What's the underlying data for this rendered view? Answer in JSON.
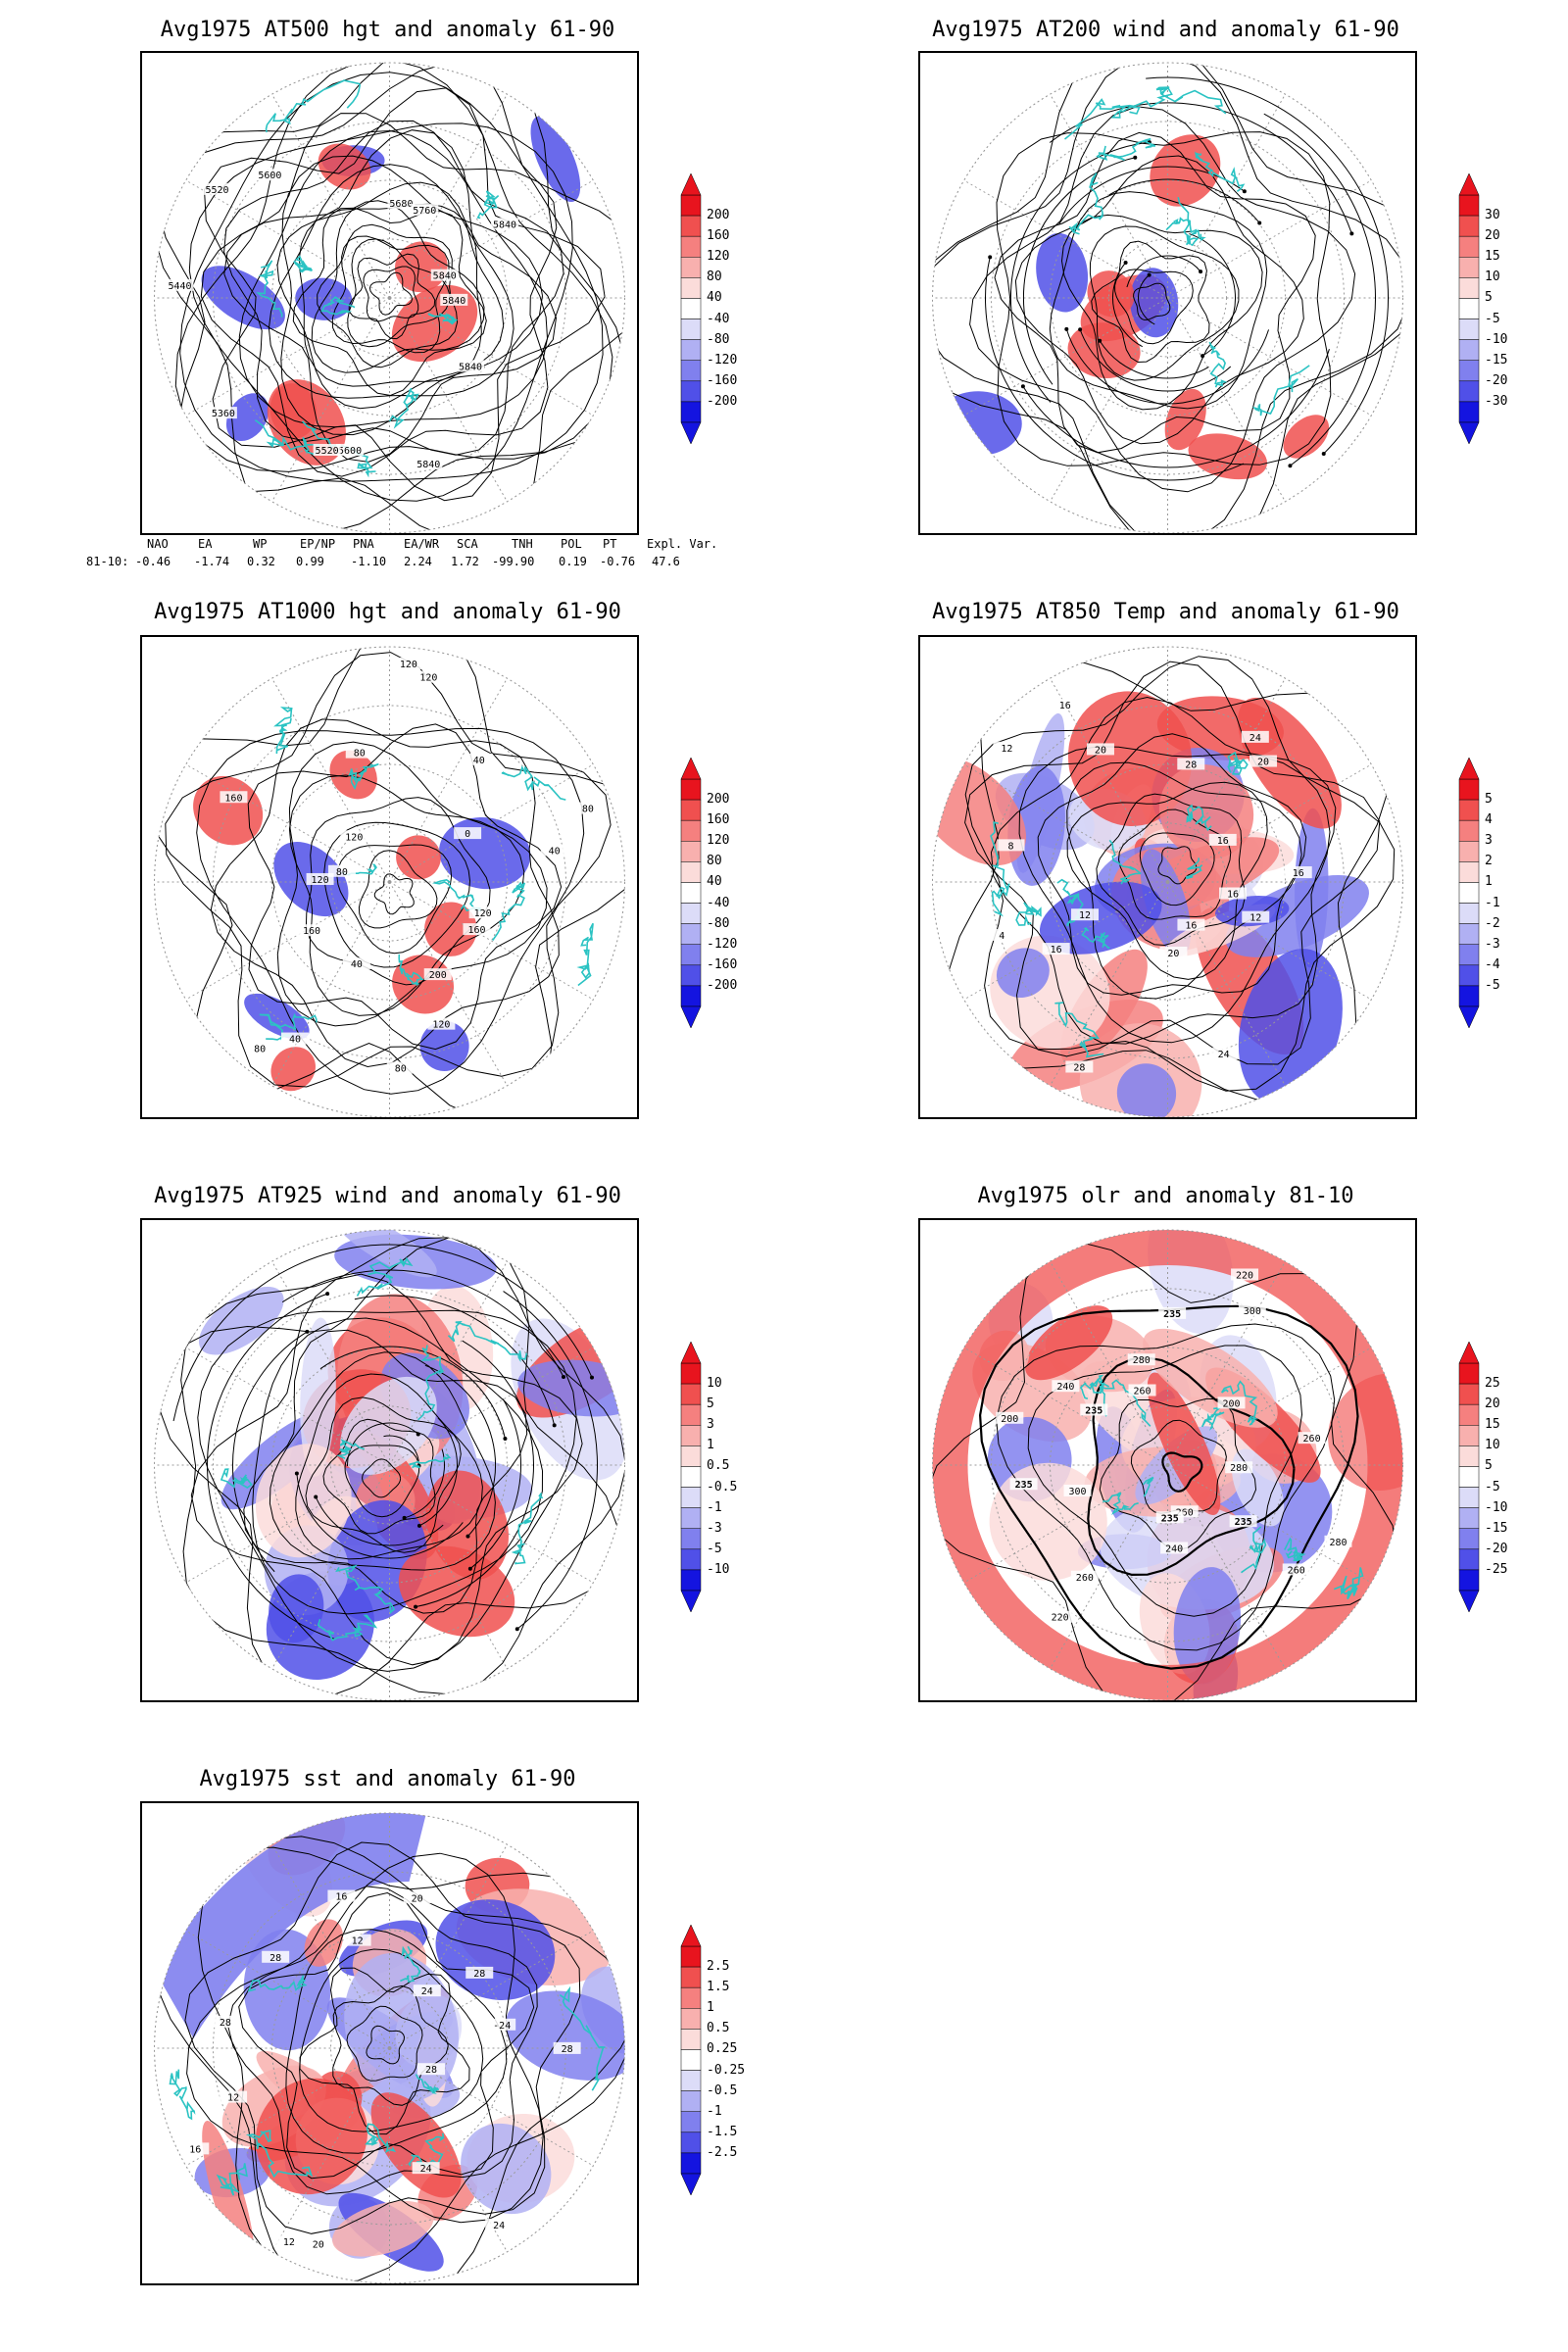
{
  "panels": [
    {
      "id": "p1",
      "title": "Avg1975 AT500 hgt and anomaly 61-90",
      "colorbar": [
        "200",
        "160",
        "120",
        "80",
        "40",
        "-40",
        "-80",
        "-120",
        "-160",
        "-200"
      ],
      "contour_labels": [
        "5840",
        "5840",
        "5840",
        "5600",
        "5520",
        "5360",
        "5440",
        "5520",
        "5600",
        "5680",
        "5760",
        "5840",
        "5840"
      ],
      "style": "hgt500"
    },
    {
      "id": "p2",
      "title": "Avg1975 AT200 wind and anomaly 61-90",
      "colorbar": [
        "30",
        "20",
        "15",
        "10",
        "5",
        "-5",
        "-10",
        "-15",
        "-20",
        "-30"
      ],
      "contour_labels": [],
      "style": "wind200"
    },
    {
      "id": "p3",
      "title": "Avg1975 AT1000 hgt and anomaly 61-90",
      "colorbar": [
        "200",
        "160",
        "120",
        "80",
        "40",
        "-40",
        "-80",
        "-120",
        "-160",
        "-200"
      ],
      "contour_labels": [
        "120",
        "160",
        "200",
        "120",
        "80",
        "40",
        "40",
        "80",
        "160",
        "120",
        "80",
        "160",
        "120",
        "80",
        "120",
        "120",
        "40",
        "0",
        "80",
        "40"
      ],
      "style": "hgt1000"
    },
    {
      "id": "p4",
      "title": "Avg1975 AT850 Temp and anomaly 61-90",
      "colorbar": [
        "5",
        "4",
        "3",
        "2",
        "1",
        "-1",
        "-2",
        "-3",
        "-4",
        "-5"
      ],
      "contour_labels": [
        "16",
        "12",
        "16",
        "24",
        "20",
        "28",
        "16",
        "12",
        "4",
        "8",
        "12",
        "16",
        "20",
        "28",
        "24",
        "20",
        "16",
        "16"
      ],
      "style": "temp850"
    },
    {
      "id": "p5",
      "title": "Avg1975 AT925 wind and anomaly 61-90",
      "colorbar": [
        "10",
        "5",
        "3",
        "1",
        "0.5",
        "-0.5",
        "-1",
        "-3",
        "-5",
        "-10"
      ],
      "contour_labels": [],
      "style": "wind925"
    },
    {
      "id": "p6",
      "title": "Avg1975 olr and anomaly 81-10",
      "colorbar": [
        "25",
        "20",
        "15",
        "10",
        "5",
        "-5",
        "-10",
        "-15",
        "-20",
        "-25"
      ],
      "contour_labels": [
        "280",
        "260",
        "235",
        "260",
        "240",
        "235",
        "260",
        "220",
        "300",
        "235",
        "200",
        "235",
        "240",
        "260",
        "280",
        "235",
        "300",
        "220",
        "200",
        "260",
        "280"
      ],
      "style": "olr"
    },
    {
      "id": "p7",
      "title": "Avg1975 sst and anomaly 61-90",
      "colorbar": [
        "2.5",
        "1.5",
        "1",
        "0.5",
        "0.25",
        "-0.25",
        "-0.5",
        "-1",
        "-1.5",
        "-2.5"
      ],
      "contour_labels": [
        "28",
        "28",
        "24",
        "24",
        "20",
        "12",
        "16",
        "12",
        "28",
        "28",
        "16",
        "12",
        "20",
        "24",
        "28",
        "-24"
      ],
      "style": "sst"
    }
  ],
  "teleconnection": {
    "headers": [
      "NAO",
      "EA",
      "WP",
      "EP/NP",
      "PNA",
      "EA/WR",
      "SCA",
      "TNH",
      "POL",
      "PT",
      "Expl. Var."
    ],
    "row_label": "81-10:",
    "values": [
      "-0.46",
      "-1.74",
      "0.32",
      "0.99",
      "-1.10",
      "2.24",
      "1.72",
      "-99.90",
      "0.19",
      "-0.76",
      "47.6"
    ]
  },
  "colors": {
    "coast": "#2bc3c3",
    "contour": "#000000",
    "grid": "#9a9a9a",
    "colorbar": [
      "#e8141e",
      "#f0504f",
      "#f5807f",
      "#f8b0ae",
      "#fbdcda",
      "#ffffff",
      "#dcdcf8",
      "#b0b0f3",
      "#8080ee",
      "#5050e8",
      "#1414e0"
    ]
  }
}
